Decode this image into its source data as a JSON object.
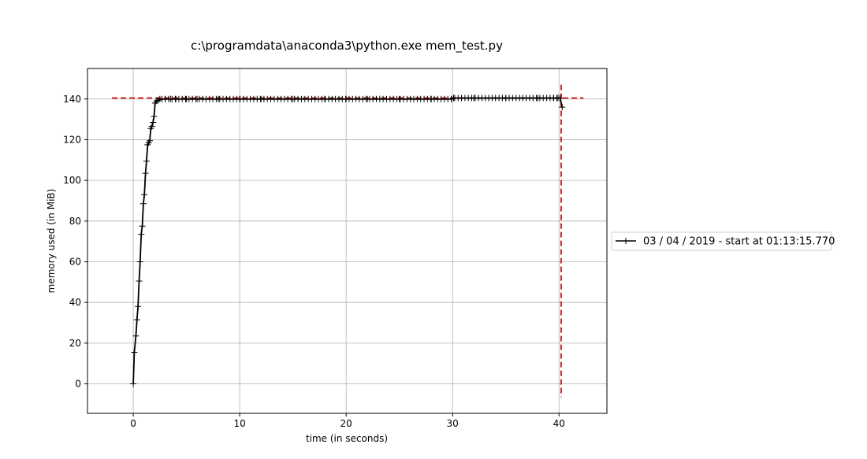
{
  "chart_data": {
    "type": "line",
    "title": "c:\\programdata\\anaconda3\\python.exe mem_test.py",
    "xlabel": "time (in seconds)",
    "ylabel": "memory used (in MiB)",
    "xlim": [
      -4.3,
      44.5
    ],
    "ylim": [
      -14.5,
      155
    ],
    "xticks": [
      0,
      10,
      20,
      30,
      40
    ],
    "yticks": [
      0,
      20,
      40,
      60,
      80,
      100,
      120,
      140
    ],
    "grid": true,
    "legend": {
      "location": "outside-right",
      "entries": [
        "03 / 04 / 2019 - start at 01:13:15.770"
      ]
    },
    "series": [
      {
        "name": "03 / 04 / 2019 - start at 01:13:15.770",
        "color": "#000000",
        "marker": "+",
        "x": [
          0,
          0.1,
          0.25,
          0.35,
          0.45,
          0.55,
          0.65,
          0.75,
          0.85,
          0.95,
          1.05,
          1.15,
          1.25,
          1.35,
          1.45,
          1.55,
          1.65,
          1.75,
          1.85,
          1.95,
          2.05,
          2.2,
          2.35,
          2.5,
          2.7,
          3.0,
          3.5,
          4.0,
          5.0,
          6.0,
          8.0,
          10.0,
          12.0,
          15.0,
          18.0,
          20.0,
          22.0,
          25.0,
          28.0,
          29.9,
          30.1,
          32.0,
          35.0,
          38.0,
          39.5,
          39.9,
          40.1,
          40.3
        ],
        "y": [
          0,
          15.5,
          23.5,
          31.5,
          38,
          50.5,
          60,
          73.5,
          77.5,
          88.5,
          93,
          103.5,
          109.5,
          117.5,
          118.5,
          119.5,
          125.5,
          126.5,
          128.5,
          131.5,
          138,
          139,
          139.5,
          140,
          140,
          140,
          140,
          140,
          140,
          140,
          140,
          140,
          140,
          140,
          140,
          140,
          140,
          140,
          140,
          140,
          140.5,
          140.5,
          140.5,
          140.5,
          140.5,
          140.5,
          140.5,
          136
        ]
      }
    ],
    "guides": {
      "color": "#d62728",
      "max_memory": 140.5,
      "max_memory_x_range": [
        -2.0,
        42.3
      ],
      "end_time": 40.2,
      "end_time_y_range": [
        -6.5,
        147
      ]
    }
  }
}
